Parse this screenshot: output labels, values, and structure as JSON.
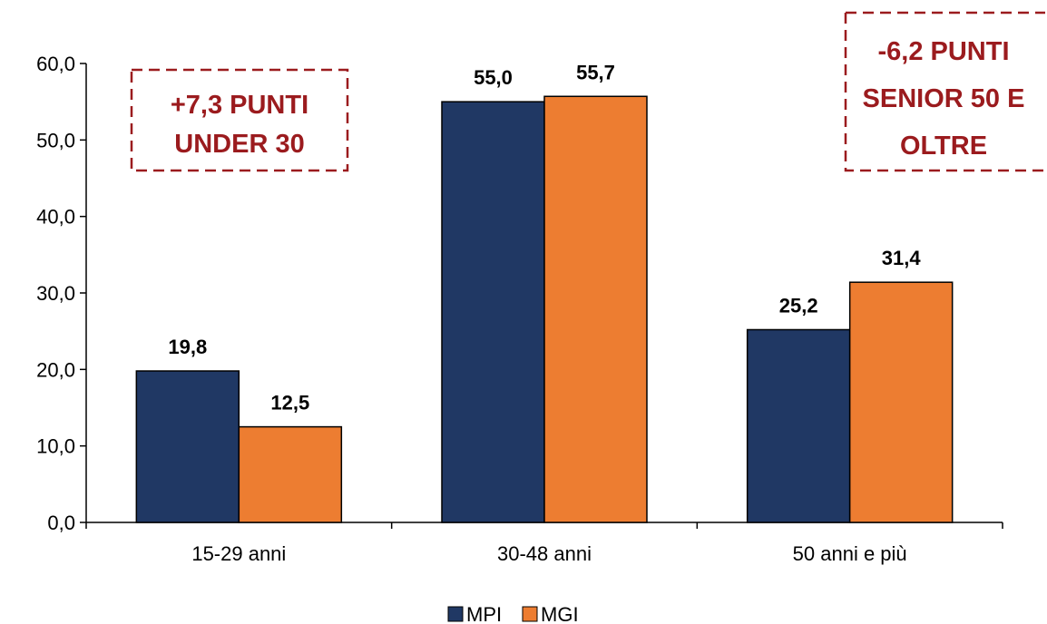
{
  "chart_data": {
    "type": "bar",
    "categories": [
      "15-29 anni",
      "30-48 anni",
      "50 anni e più"
    ],
    "series": [
      {
        "name": "MPI",
        "values": [
          19.8,
          55.0,
          25.2
        ],
        "labels": [
          "19,8",
          "55,0",
          "25,2"
        ],
        "color": "#203864"
      },
      {
        "name": "MGI",
        "values": [
          12.5,
          55.7,
          31.4
        ],
        "labels": [
          "12,5",
          "55,7",
          "31,4"
        ],
        "color": "#ED7D31"
      }
    ],
    "y_ticks": [
      0,
      10,
      20,
      30,
      40,
      50,
      60
    ],
    "y_tick_labels": [
      "0,0",
      "10,0",
      "20,0",
      "30,0",
      "40,0",
      "50,0",
      "60,0"
    ],
    "ylim": [
      0,
      60
    ],
    "grid": false,
    "legend_position": "bottom",
    "annotations": [
      {
        "lines": [
          "+7,3 PUNTI",
          "UNDER 30"
        ]
      },
      {
        "lines": [
          "-6,2 PUNTI",
          "SENIOR 50 E",
          "OLTRE"
        ]
      }
    ],
    "annotation_color": "#9B1B1E"
  }
}
